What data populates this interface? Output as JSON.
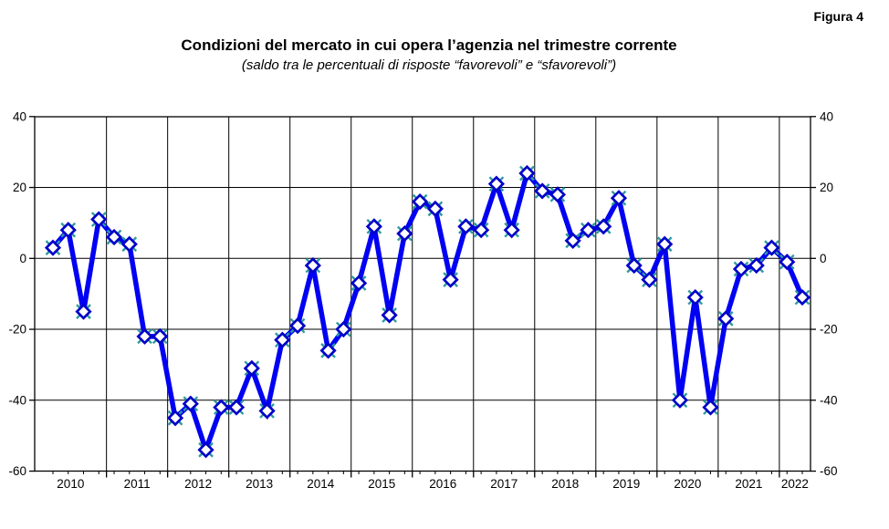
{
  "figure_label": "Figura 4",
  "title": "Condizioni del mercato in cui opera l’agenzia nel trimestre corrente",
  "subtitle": "(saldo tra le percentuali di risposte “favorevoli” e “sfavorevoli”)",
  "chart_data": {
    "type": "line",
    "title": "Condizioni del mercato in cui opera l’agenzia nel trimestre corrente",
    "subtitle": "(saldo tra le percentuali di risposte “favorevoli” e “sfavorevoli”)",
    "categories": [
      "2010 Q1",
      "2010 Q2",
      "2010 Q3",
      "2010 Q4",
      "2011 Q1",
      "2011 Q2",
      "2011 Q3",
      "2011 Q4",
      "2012 Q1",
      "2012 Q2",
      "2012 Q3",
      "2012 Q4",
      "2013 Q1",
      "2013 Q2",
      "2013 Q3",
      "2013 Q4",
      "2014 Q1",
      "2014 Q2",
      "2014 Q3",
      "2014 Q4",
      "2015 Q1",
      "2015 Q2",
      "2015 Q3",
      "2015 Q4",
      "2016 Q1",
      "2016 Q2",
      "2016 Q3",
      "2016 Q4",
      "2017 Q1",
      "2017 Q2",
      "2017 Q3",
      "2017 Q4",
      "2018 Q1",
      "2018 Q2",
      "2018 Q3",
      "2018 Q4",
      "2019 Q1",
      "2019 Q2",
      "2019 Q3",
      "2019 Q4",
      "2020 Q1",
      "2020 Q2",
      "2020 Q3",
      "2020 Q4",
      "2021 Q1",
      "2021 Q2",
      "2021 Q3",
      "2021 Q4",
      "2022 Q1",
      "2022 Q2"
    ],
    "series": [
      {
        "name": "saldo",
        "values": [
          3,
          8,
          -15,
          11,
          6,
          4,
          -22,
          -22,
          -45,
          -41,
          -54,
          -42,
          -42,
          -31,
          -43,
          -23,
          -19,
          -2,
          -26,
          -20,
          -7,
          9,
          -16,
          7,
          16,
          14,
          -6,
          9,
          8,
          21,
          8,
          24,
          19,
          18,
          5,
          8,
          9,
          17,
          -2,
          -6,
          4,
          -40,
          -11,
          -42,
          -17,
          -3,
          -2,
          3,
          -1,
          -11
        ]
      }
    ],
    "year_labels": [
      "2010",
      "2011",
      "2012",
      "2013",
      "2014",
      "2015",
      "2016",
      "2017",
      "2018",
      "2019",
      "2020",
      "2021",
      "2022"
    ],
    "y_ticks": [
      40,
      20,
      0,
      -20,
      -40,
      -60
    ],
    "ylim": [
      -60,
      40
    ],
    "grid": true,
    "legend": false,
    "line_color": "#0000F2",
    "marker_stroke": "#0000C8",
    "marker_fill": "#FFFFFF",
    "marker_accent_color": "#2E9C9C",
    "axis_color": "#000000"
  }
}
